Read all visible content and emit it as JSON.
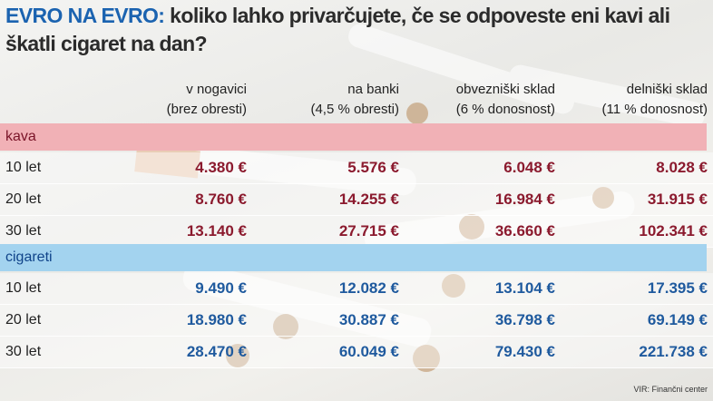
{
  "title": {
    "highlight": "EVRO NA EVRO:",
    "text": "koliko lahko privarčujete, če se odpoveste eni kavi ali škatli cigaret na dan?"
  },
  "columns": [
    [
      "v nogavici",
      "(brez obresti)"
    ],
    [
      "na banki",
      "(4,5 % obresti)"
    ],
    [
      "obvezniški sklad",
      "(6 % donosnost)"
    ],
    [
      "delniški sklad",
      "(11 % donosnost)"
    ]
  ],
  "sections": [
    {
      "name": "kava",
      "rows": [
        {
          "label": "10 let",
          "values": [
            "4.380 €",
            "5.576 €",
            "6.048 €",
            "8.028 €"
          ]
        },
        {
          "label": "20 let",
          "values": [
            "8.760 €",
            "14.255 €",
            "16.984 €",
            "31.915 €"
          ]
        },
        {
          "label": "30 let",
          "values": [
            "13.140 €",
            "27.715 €",
            "36.660 €",
            "102.341 €"
          ]
        }
      ]
    },
    {
      "name": "cigareti",
      "rows": [
        {
          "label": "10 let",
          "values": [
            "9.490 €",
            "12.082 €",
            "13.104 €",
            "17.395 €"
          ]
        },
        {
          "label": "20 let",
          "values": [
            "18.980 €",
            "30.887 €",
            "36.798 €",
            "69.149 €"
          ]
        },
        {
          "label": "30 let",
          "values": [
            "28.470 €",
            "60.049 €",
            "79.430 €",
            "221.738 €"
          ]
        }
      ]
    }
  ],
  "source": "VIR: Finančni center"
}
